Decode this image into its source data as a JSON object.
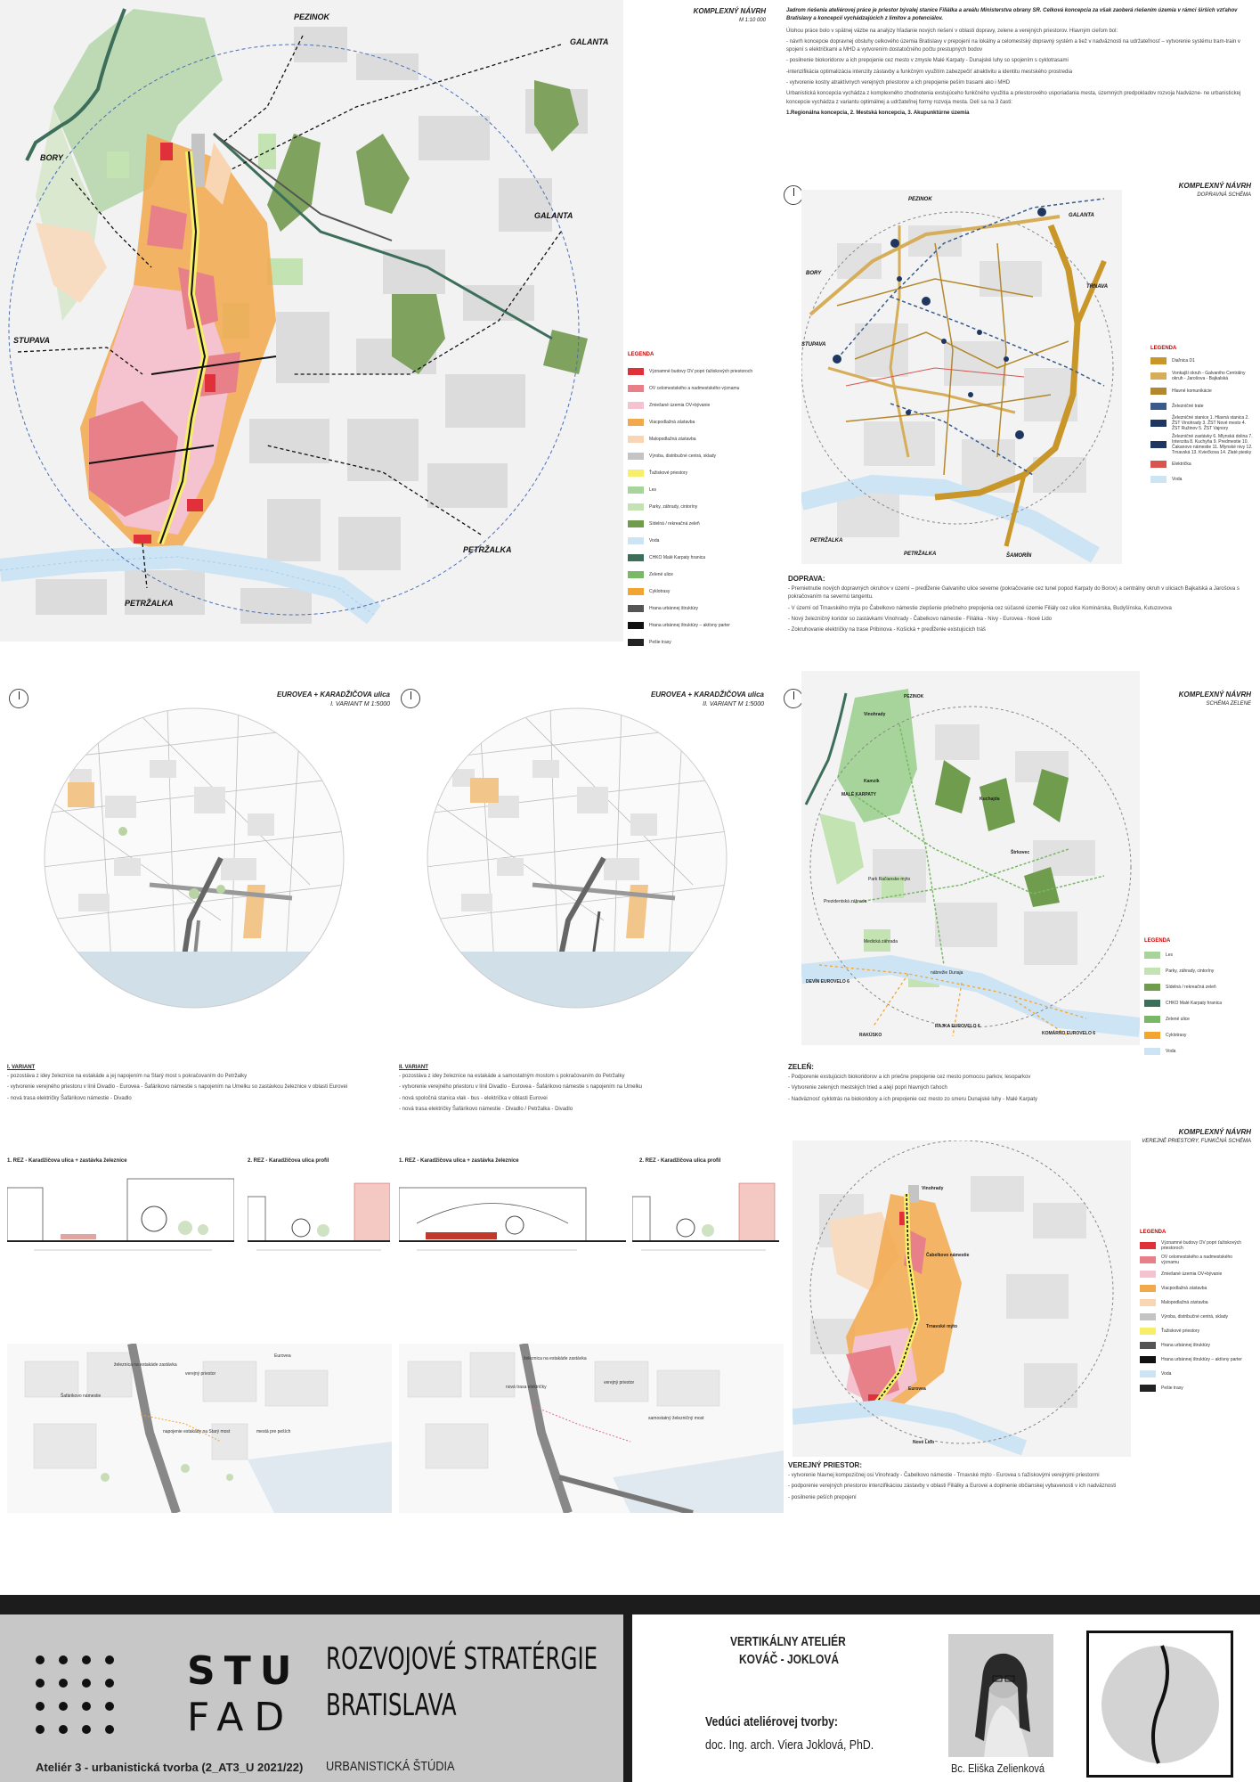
{
  "main_map": {
    "title": "KOMPLEXNÝ NÁVRH",
    "scale": "M 1:10 000",
    "directions": [
      "PEZINOK",
      "GALANTA",
      "BORY",
      "GALANTA",
      "STUPAVA",
      "PETRŽALKA",
      "PETRŽALKA"
    ],
    "legend_title": "LEGENDA",
    "legend": [
      {
        "label": "Významné budovy OV popri ťažiskových priestoroch",
        "color": "#e0303a"
      },
      {
        "label": "OV celomestského a nadmestského významu",
        "color": "#e8808a"
      },
      {
        "label": "Zmiešané územia OV+bývanie",
        "color": "#f4c3cf"
      },
      {
        "label": "Viacpodlažná zástavba",
        "color": "#f2a84c"
      },
      {
        "label": "Malopodlažná zástavba",
        "color": "#f8d6b4"
      },
      {
        "label": "Výroba, distribučné centrá, sklady",
        "color": "#c4c4c4"
      },
      {
        "label": "Ťažiskové priestory",
        "color": "#f7ef6a"
      },
      {
        "label": "Les",
        "color": "#a6d49a"
      },
      {
        "label": "Parky, záhrady, cintoríny",
        "color": "#c3e3b3"
      },
      {
        "label": "Sídelná / rekreačná zeleň",
        "color": "#6f9c4d"
      },
      {
        "label": "Voda",
        "color": "#cde4f4"
      },
      {
        "label": "CHKO Malé Karpaty hranica",
        "color": "#3d6e5a"
      },
      {
        "label": "Zelené ulice",
        "color": "#79b867"
      },
      {
        "label": "Cyklotrasy",
        "color": "#f2a530"
      },
      {
        "label": "Hrana urbánnej štruktúry",
        "color": "#555555"
      },
      {
        "label": "Hrana urbánnej štruktúry – aktívny parter",
        "color": "#111111"
      },
      {
        "label": "Pešie trasy",
        "color": "#222222"
      }
    ]
  },
  "intro": {
    "lead": "Jadrom riešenia ateliérovej práce je priestor bývalej stanice Filiálka a areálu Ministerstva obrany SR. Celková koncepcia za však zaoberá riešením územia v rámci širších vzťahov Bratislavy a koncepcií vychádzajúcich z limitov a potenciálov.",
    "paras": [
      "Úlohou práce bolo v spätnej väzbe na analýzy hľadanie nových riešení v oblasti dopravy, zelene a verejných priestorov. Hlavným cieľom bol:",
      "- návrh koncepcie dopravnej obsluhy celkového územia Bratislavy v prepojení na lokálny a celomestský dopravný systém a tiež v nadväznosti na udržateľnosť – vytvorenie systému tram-train v spojení s električkami a MHD a vytvorením dostatočného počtu prestupných bodov",
      "- posilnenie biokoridorov a ich prepojenie cez mesto v zmysle Malé Karpaty - Dunajské luhy so spojením s cyklotrasami",
      "-intenzifikácia optimalizácia intenzity zástavby a funkčným využitím zabezpečiť atraktivitu a identitu mestského prostredia",
      "- vytvorenie kostry atraktívnych verejných priestorov a ich prepojenie peším trasami ako i MHD",
      "Urbanistická koncepcia vychádza z komplexného zhodnotenia exstujúceho funkčného využitia a priestorového usporiadania mesta, územných predpokladov rozvoja Nadväzne- ne urbanistickej koncepcie vychádza z variantu optimálnej a udržateľnej formy rozvoja mesta. Delí sa na 3 časti:"
    ],
    "parts": "1.Regionálna koncepcia, 2. Mestská koncepcia, 3. Akupunktúrne územia"
  },
  "transport": {
    "title": "KOMPLEXNÝ NÁVRH",
    "subtitle": "DOPRAVNÁ SCHÉMA",
    "places": [
      "PEZINOK",
      "GALANTA",
      "BORY",
      "TRNAVA",
      "STUPAVA",
      "PETRŽALKA",
      "PETRŽALKA",
      "ŠAMORÍN"
    ],
    "legend_title": "LEGENDA",
    "legend": [
      {
        "label": "Diaľnica D1",
        "color": "#c9962a"
      },
      {
        "label": "Vonkajší okruh - Galvaniho Centrálny okruh - Jarošova - Bajkalská",
        "color": "#d6ae5a"
      },
      {
        "label": "Hlavné komunikácie",
        "color": "#b3882c"
      },
      {
        "label": "Železničné trate",
        "color": "#3a5a8c"
      },
      {
        "label": "Železničné stanice 1. Hlavná stanica 2. ŽST Vinohrady 3. ŽST Nové mesto 4. ŽST Ružinov 5. ŽST Vajnory",
        "color": "#1f3760"
      },
      {
        "label": "Železničné zastávky 6. Mlynská dolina 7. Intenzita 8. Kuchyňa 9. Predmestie 10. Čakanovo námestie 11. Mlynské nivy 12. Trnavská 13. Kviečkova 14. Zlaté piesky",
        "color": "#1f3760"
      },
      {
        "label": "Električka",
        "color": "#d9534f"
      },
      {
        "label": "Voda",
        "color": "#cde4f4"
      }
    ]
  },
  "doprava": {
    "heading": "DOPRAVA:",
    "items": [
      "- Premietnutie nových dopravných okruhov v území – predĺženie Galvaniho ulice severne (pokračovanie cez tunel popod Karpaty do Borov) a centrálny okruh v uliciach Bajkalská a Jarošova s pokračovaním na severnú tangentu.",
      "- V území od Trnavského mýta po Čabelkovo námestie zlepšenie priečneho prepojenia cez súčasné územie Filiály cez ulice Kominárska, Budyšínska, Kutuzovova",
      "- Nový železničný koridor so zastávkami Vinohrady - Čabelkovo námestie - Filiálka - Nivy - Eurovea - Nové Lido",
      "- Zokruhovanie električky na trase Pribinova - Košická + predĺženie existujúcich tráš"
    ]
  },
  "variant1": {
    "title": "EUROVEA + KARADŽIČOVA ulica",
    "subtitle": "I. VARIANT M 1:5000",
    "heading": "I. VARIANT",
    "items": [
      "- pozostáva z idey železnice na estakáde a jej napojením na Starý most s pokračovaním do Petržalky",
      "- vytvorenie verejného priestoru v línii Divadlo - Eurovea - Šafárikovo námestie s napojením na Umelku so zastávkou železnice v oblasti Eurovei",
      "- nová trasa električky Šafárikovo námestie - Divadlo"
    ],
    "rez1": "1. REZ - Karadžičova ulica + zastávka železnice",
    "rez2": "2. REZ - Karadžičova ulica profil",
    "axo_labels": [
      "Šafárikovo námestie",
      "železnica na estakáde zastávka",
      "verejný priestor",
      "Eurovea",
      "napojenie estakády na Starý most",
      "mestá pre peších"
    ]
  },
  "variant2": {
    "title": "EUROVEA + KARADŽIČOVA ulica",
    "subtitle": "II. VARIANT M 1:5000",
    "heading": "II. VARIANT",
    "items": [
      "- pozostáva z idey železnice na estakáde a samostatným mostom s pokračovaním do Petržalky",
      "- vytvorenie verejného priestoru v línii Divadlo - Eurovea - Šafárikovo námestie s napojením na Umelku",
      "- nová spoločná stanica vlak - bus - električka v oblasti Eurovei",
      "- nová trasa električky Šafárikovo námestie - Divadlo / Petržalka - Divadlo"
    ],
    "rez1": "1. REZ - Karadžičova ulica + zastávka železnice",
    "rez2": "2. REZ - Karadžičova ulica profil",
    "axo_labels": [
      "železnica na estakáde zastávka",
      "nová trasa električky",
      "verejný priestor",
      "samostatný železničný most"
    ]
  },
  "green": {
    "title": "KOMPLEXNÝ NÁVRH",
    "subtitle": "SCHÉMA ZELENE",
    "places": [
      "Vinohrady",
      "PEZINOK",
      "Kamzík",
      "MALÉ KARPATY",
      "Kuchajda",
      "Štrkovec",
      "Park Račianske mýto",
      "Prezidentská záhrada",
      "Medická záhrada",
      "DEVÍN EUROVELO 6",
      "RAKÚSKO",
      "nábrežie Dunaja",
      "RAJKA EUROVELO 6",
      "KOMÁRNO EUROVELO 6"
    ],
    "legend_title": "LEGENDA",
    "legend": [
      {
        "label": "Les",
        "color": "#a6d49a"
      },
      {
        "label": "Parky, záhrady, cintoríny",
        "color": "#c3e3b3"
      },
      {
        "label": "Sídelná / rekreačná zeleň",
        "color": "#6f9c4d"
      },
      {
        "label": "CHKO Malé Karpaty hranica",
        "color": "#3d6e5a"
      },
      {
        "label": "Zelené ulice",
        "color": "#79b867"
      },
      {
        "label": "Cyklotrasy",
        "color": "#f2a530"
      },
      {
        "label": "Voda",
        "color": "#cde4f4"
      }
    ],
    "heading": "ZELEŇ:",
    "items": [
      "- Podporenie exstujúcich biokoridorov a ich priečne prepojenie cez mesto pomocou parkov, lesoparkov",
      "- Vytvorenie zelených mestských tried a alejí popri hlavných ťahoch",
      "- Nadväznosť cyklotrás na biokoridory a ich prepojenie cez mesto zo smeru Dunajské luhy - Malé Karpaty"
    ]
  },
  "public": {
    "title": "KOMPLEXNÝ NÁVRH",
    "subtitle": "VEREJNÉ PRIESTORY, FUNKČNÁ SCHÉMA",
    "places": [
      "Vinohrady",
      "Čabelkovo námestie",
      "Trnavské mýto",
      "Eurovea",
      "Nové Lido"
    ],
    "legend_title": "LEGENDA",
    "legend": [
      {
        "label": "Významné budovy OV popri ťažiskových priestoroch",
        "color": "#e0303a"
      },
      {
        "label": "OV celomestského a nadmestského významu",
        "color": "#e8808a"
      },
      {
        "label": "Zmiešané územia OV+bývanie",
        "color": "#f4c3cf"
      },
      {
        "label": "Viacpodlažná zástavba",
        "color": "#f2a84c"
      },
      {
        "label": "Malopodlažná zástavba",
        "color": "#f8d6b4"
      },
      {
        "label": "Výroba, distribučné centrá, sklady",
        "color": "#c4c4c4"
      },
      {
        "label": "Ťažiskové priestory",
        "color": "#f7ef6a"
      },
      {
        "label": "Hrana urbánnej štruktúry",
        "color": "#555555"
      },
      {
        "label": "Hrana urbánnej štruktúry – aktívny parter",
        "color": "#111111"
      },
      {
        "label": "Voda",
        "color": "#cde4f4"
      },
      {
        "label": "Pešie trasy",
        "color": "#222222"
      }
    ],
    "heading": "VEREJNÝ PRIESTOR:",
    "items": [
      "- vytvorenie hlavnej kompozičnej osi Vinohrady - Čabelkovo námestie - Trnavské mýto - Eurovea s ťažiskovými verejnými priestormi",
      "- podporenie verejných priestorov intenzifikáciou zástavby v oblasti Filiálky a Eurovei a doplnenie občianskej vybavenosti v ich nadväznosti",
      "- posilnenie peších prepojení"
    ]
  },
  "footer": {
    "stu": "STU",
    "fad": "FAD",
    "project_line1": "ROZVOJOVÉ STRATÉRGIE",
    "project_line2": "BRATISLAVA",
    "course": "Ateliér 3 - urbanistická tvorba (2_AT3_U 2021/22)",
    "study": "URBANISTICKÁ ŠTÚDIA",
    "studio_line1": "VERTIKÁLNY ATELIÉR",
    "studio_line2": "KOVÁČ - JOKLOVÁ",
    "leader_label": "Vedúci ateliérovej tvorby:",
    "leader_name": "doc. Ing. arch. Viera Joklová, PhD.",
    "author": "Bc. Eliška Zelienková"
  }
}
